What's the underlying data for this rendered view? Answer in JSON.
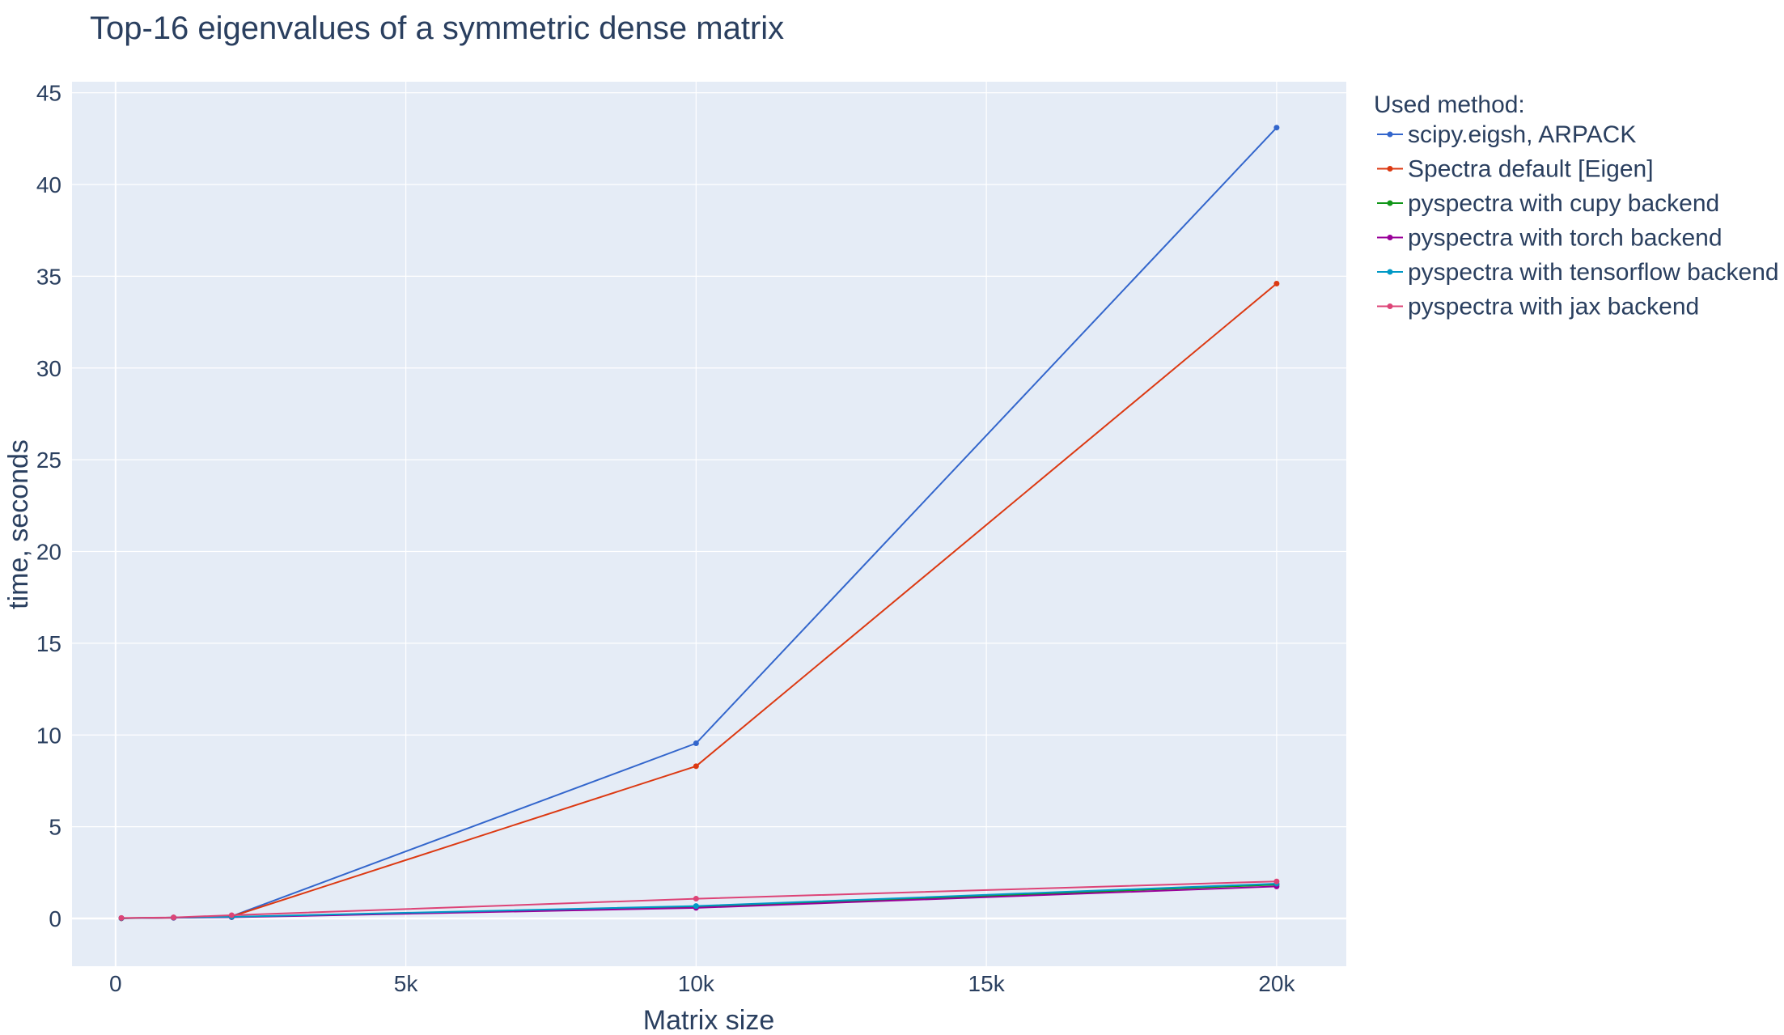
{
  "chart_data": {
    "type": "line",
    "title": "Top-16 eigenvalues of a symmetric dense matrix",
    "xlabel": "Matrix size",
    "ylabel": "time, seconds",
    "xlim": [
      -750,
      21200
    ],
    "ylim": [
      -2.6,
      45.6
    ],
    "x_ticks": [
      0,
      5000,
      10000,
      15000,
      20000
    ],
    "x_tick_labels": [
      "0",
      "5k",
      "10k",
      "15k",
      "20k"
    ],
    "y_ticks": [
      0,
      5,
      10,
      15,
      20,
      25,
      30,
      35,
      40,
      45
    ],
    "y_tick_labels": [
      "0",
      "5",
      "10",
      "15",
      "20",
      "25",
      "30",
      "35",
      "40",
      "45"
    ],
    "grid": true,
    "legend_title": "Used method:",
    "legend_position": "right",
    "x": [
      100,
      1000,
      2000,
      10000,
      20000
    ],
    "series": [
      {
        "name": "scipy.eigsh, ARPACK",
        "color": "#3366cc",
        "values": [
          0.01,
          0.05,
          0.12,
          9.55,
          43.1
        ]
      },
      {
        "name": "Spectra default [Eigen]",
        "color": "#dc3912",
        "values": [
          0.01,
          0.04,
          0.11,
          8.3,
          34.6
        ]
      },
      {
        "name": "pyspectra with cupy backend",
        "color": "#109618",
        "values": [
          0.02,
          0.05,
          0.08,
          0.62,
          1.85
        ]
      },
      {
        "name": "pyspectra with torch backend",
        "color": "#990099",
        "values": [
          0.02,
          0.04,
          0.07,
          0.58,
          1.75
        ]
      },
      {
        "name": "pyspectra with tensorflow backend",
        "color": "#0099c6",
        "values": [
          0.02,
          0.05,
          0.09,
          0.68,
          1.9
        ]
      },
      {
        "name": "pyspectra with jax backend",
        "color": "#dd4477",
        "values": [
          0.03,
          0.06,
          0.18,
          1.08,
          2.02
        ]
      }
    ]
  },
  "colors": {
    "plot_background": "#e5ecf6",
    "grid": "#ffffff",
    "text": "#2a3f5f"
  }
}
